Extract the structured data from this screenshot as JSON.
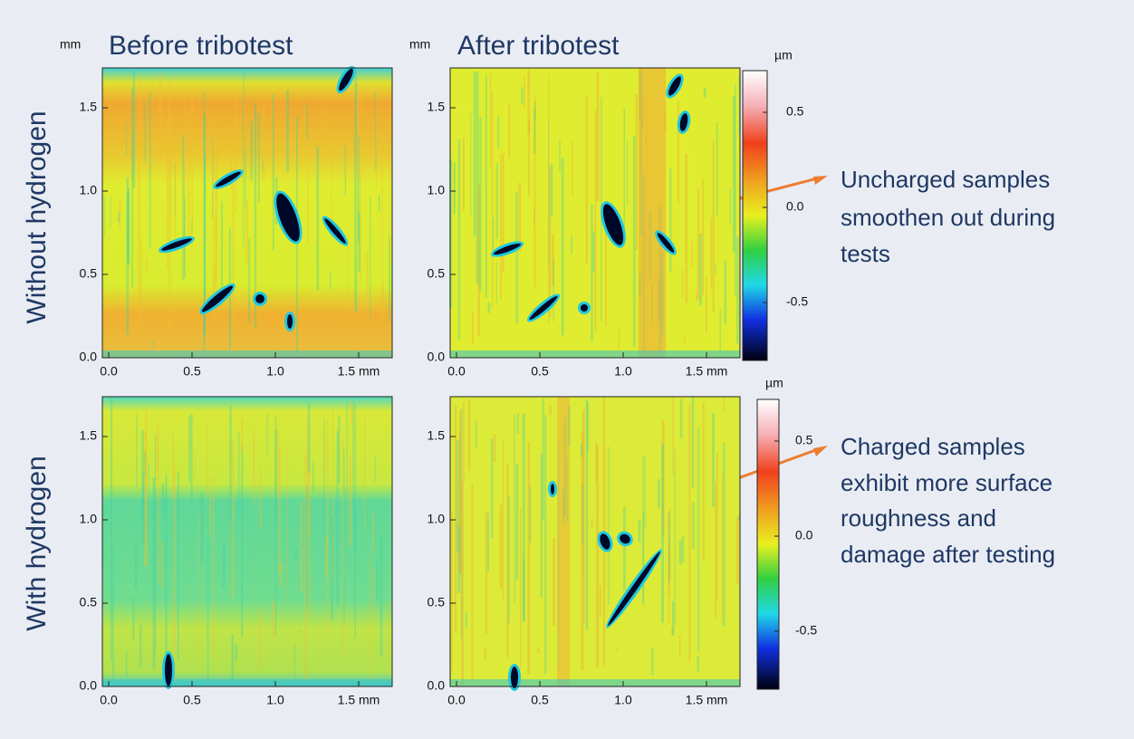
{
  "panels": {
    "columns": [
      "Before tribotest",
      "After tribotest"
    ],
    "rows": [
      "Without hydrogen",
      "With hydrogen"
    ],
    "axis_unit": "mm",
    "x_ticks": [
      "0.0",
      "0.5",
      "1.0",
      "1.5 mm"
    ],
    "y_ticks": [
      "0.0",
      "0.5",
      "1.0",
      "1.5"
    ]
  },
  "colorbar": {
    "unit": "µm",
    "ticks": [
      "0.5",
      "0.0",
      "-0.5"
    ]
  },
  "annotations": [
    {
      "lines": [
        "Uncharged  samples",
        "smoothen out during",
        "tests"
      ]
    },
    {
      "lines": [
        "Charged samples",
        "exhibit more surface",
        "roughness and",
        "damage after testing"
      ]
    }
  ]
}
